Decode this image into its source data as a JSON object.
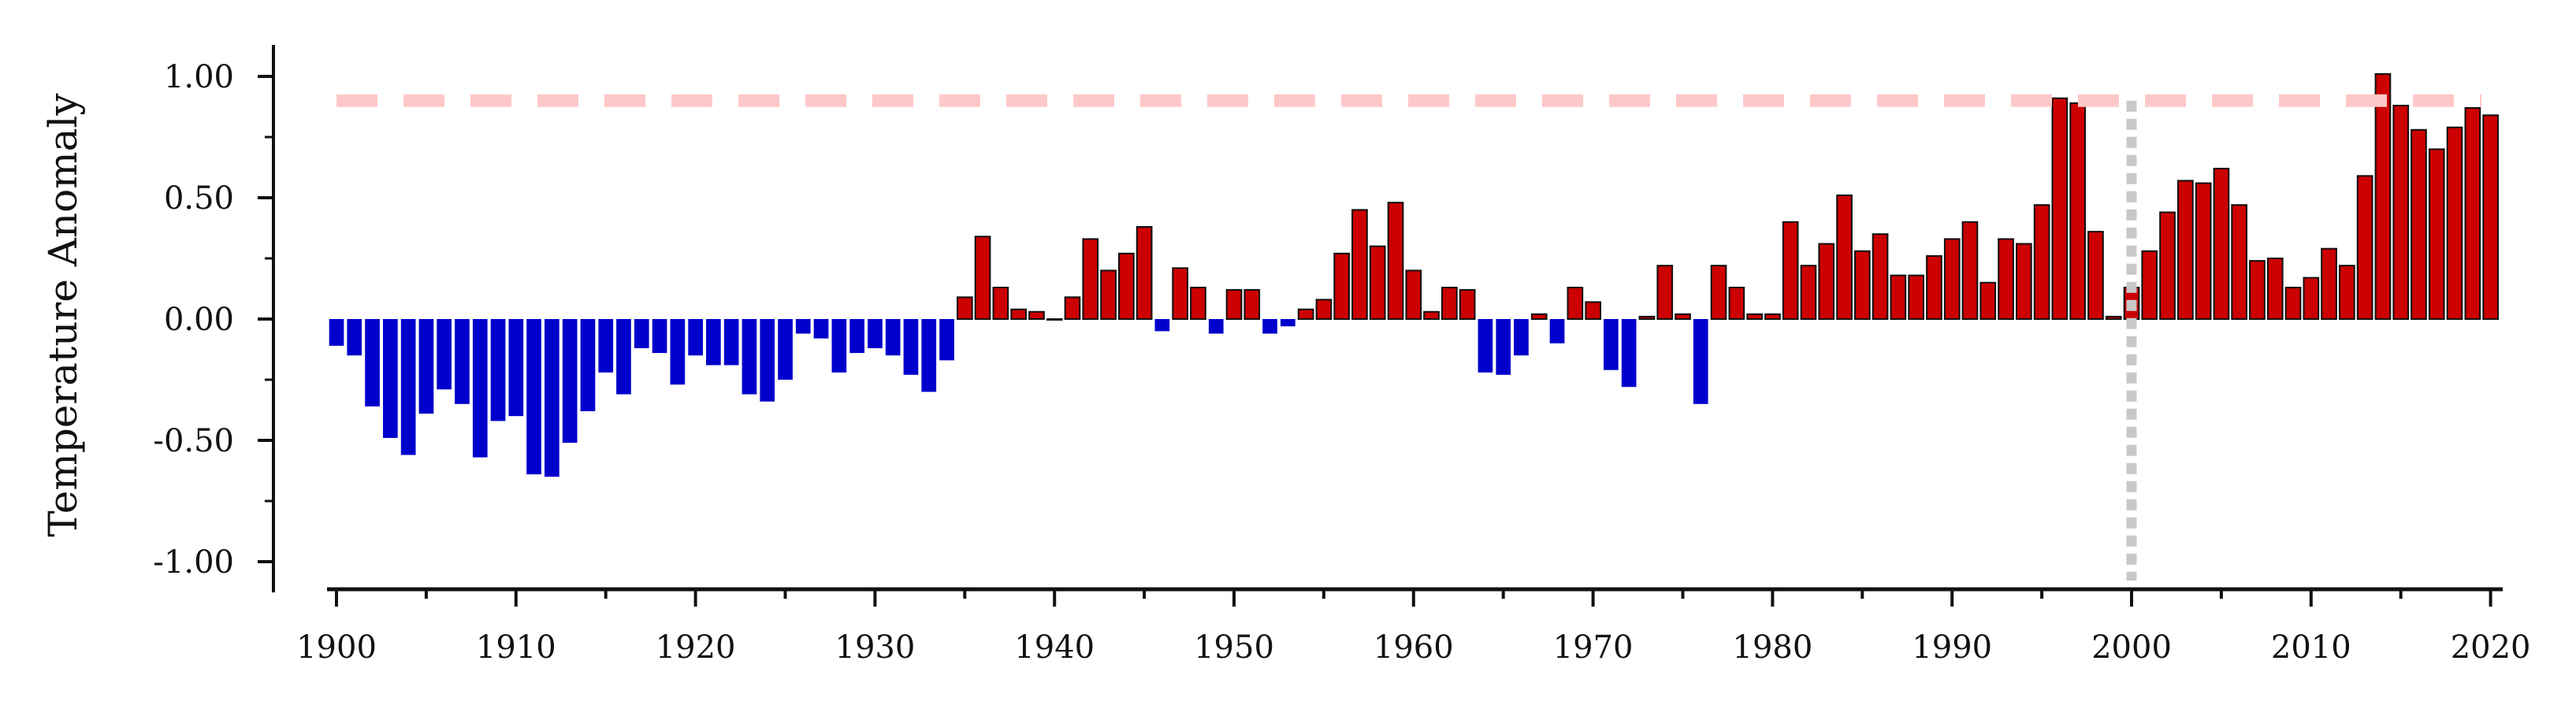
{
  "chart_data": {
    "type": "bar",
    "ylabel": "Temperature Anomaly",
    "xlabel": "",
    "ylim": [
      -1.1,
      1.1
    ],
    "xlim": [
      1900,
      2020
    ],
    "y_ticks": [
      "-1.00",
      "-0.50",
      "0.00",
      "0.50",
      "1.00"
    ],
    "x_ticks": [
      "1900",
      "1910",
      "1920",
      "1930",
      "1940",
      "1950",
      "1960",
      "1970",
      "1980",
      "1990",
      "2000",
      "2010",
      "2020"
    ],
    "grid": false,
    "colors": {
      "positive": "#cc0000",
      "negative": "#0000cc",
      "reference_line": "#ffc8c8",
      "vertical_line": "#c8c8c8"
    },
    "reference_line_y": 0.9,
    "vertical_line_x": 2000,
    "years": [
      1900,
      1901,
      1902,
      1903,
      1904,
      1905,
      1906,
      1907,
      1908,
      1909,
      1910,
      1911,
      1912,
      1913,
      1914,
      1915,
      1916,
      1917,
      1918,
      1919,
      1920,
      1921,
      1922,
      1923,
      1924,
      1925,
      1926,
      1927,
      1928,
      1929,
      1930,
      1931,
      1932,
      1933,
      1934,
      1935,
      1936,
      1937,
      1938,
      1939,
      1940,
      1941,
      1942,
      1943,
      1944,
      1945,
      1946,
      1947,
      1948,
      1949,
      1950,
      1951,
      1952,
      1953,
      1954,
      1955,
      1956,
      1957,
      1958,
      1959,
      1960,
      1961,
      1962,
      1963,
      1964,
      1965,
      1966,
      1967,
      1968,
      1969,
      1970,
      1971,
      1972,
      1973,
      1974,
      1975,
      1976,
      1977,
      1978,
      1979,
      1980,
      1981,
      1982,
      1983,
      1984,
      1985,
      1986,
      1987,
      1988,
      1989,
      1990,
      1991,
      1992,
      1993,
      1994,
      1995,
      1996,
      1997,
      1998,
      1999,
      2000,
      2001,
      2002,
      2003,
      2004,
      2005,
      2006,
      2007,
      2008,
      2009,
      2010,
      2011,
      2012,
      2013,
      2014,
      2015,
      2016,
      2017,
      2018,
      2019,
      2020
    ],
    "values": [
      -0.11,
      -0.15,
      -0.36,
      -0.49,
      -0.56,
      -0.39,
      -0.29,
      -0.35,
      -0.57,
      -0.42,
      -0.4,
      -0.64,
      -0.65,
      -0.51,
      -0.38,
      -0.22,
      -0.31,
      -0.12,
      -0.14,
      -0.27,
      -0.15,
      -0.19,
      -0.19,
      -0.31,
      -0.34,
      -0.25,
      -0.06,
      -0.08,
      -0.22,
      -0.14,
      -0.12,
      -0.15,
      -0.23,
      -0.3,
      -0.17,
      0.09,
      0.34,
      0.13,
      0.04,
      0.03,
      0.0,
      0.09,
      0.33,
      0.2,
      0.27,
      0.38,
      -0.05,
      0.21,
      0.13,
      -0.06,
      0.12,
      0.12,
      -0.06,
      -0.03,
      0.04,
      0.08,
      0.27,
      0.45,
      0.3,
      0.48,
      0.2,
      0.03,
      0.13,
      0.12,
      -0.22,
      -0.23,
      -0.15,
      0.02,
      -0.1,
      0.13,
      0.07,
      -0.21,
      -0.28,
      0.01,
      0.22,
      0.02,
      -0.35,
      0.22,
      0.13,
      0.02,
      0.02,
      0.4,
      0.22,
      0.31,
      0.51,
      0.28,
      0.35,
      0.18,
      0.18,
      0.26,
      0.33,
      0.4,
      0.15,
      0.33,
      0.31,
      0.47,
      0.91,
      0.89,
      0.36,
      0.01,
      0.13,
      0.28,
      0.44,
      0.57,
      0.56,
      0.62,
      0.47,
      0.24,
      0.25,
      0.13,
      0.17,
      0.29,
      0.22,
      0.59,
      1.01,
      0.88,
      0.78,
      0.7,
      0.79,
      0.87,
      0.84
    ]
  }
}
